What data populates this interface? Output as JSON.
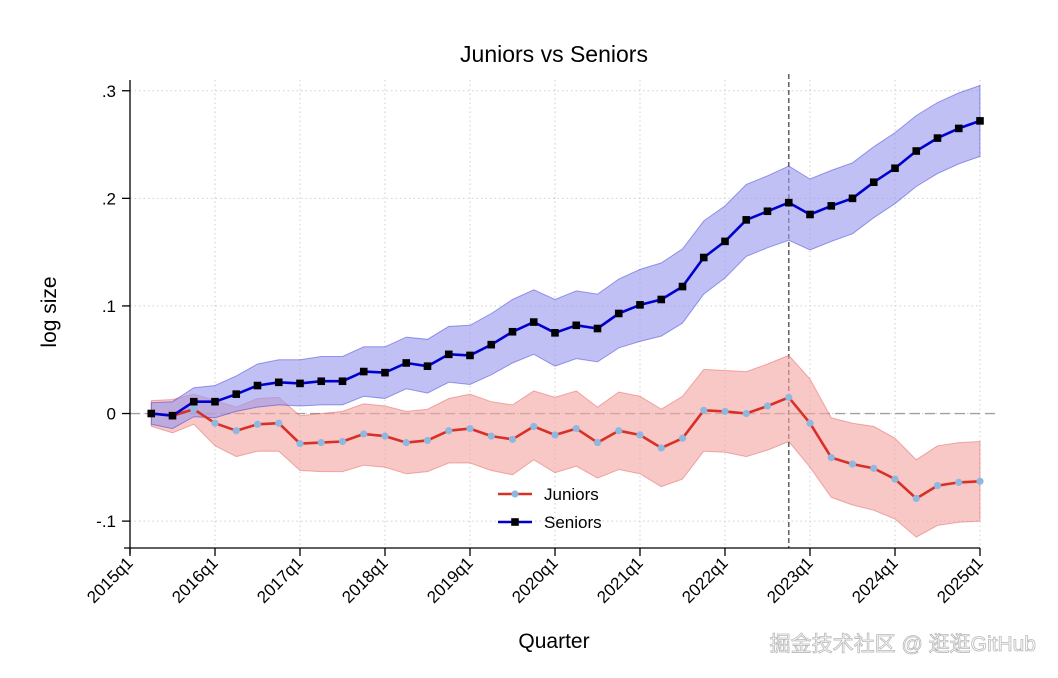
{
  "chart_data": {
    "type": "line",
    "title": "Juniors vs Seniors",
    "xlabel": "Quarter",
    "ylabel": "log size",
    "x_range": [
      "2015q1",
      "2025q1"
    ],
    "ylim": [
      -0.125,
      0.31
    ],
    "x_ticks": [
      "2015q1",
      "2016q1",
      "2017q1",
      "2018q1",
      "2019q1",
      "2020q1",
      "2021q1",
      "2022q1",
      "2023q1",
      "2024q1",
      "2025q1"
    ],
    "y_ticks": [
      {
        "value": 0.3,
        "label": ".3"
      },
      {
        "value": 0.2,
        "label": ".2"
      },
      {
        "value": 0.1,
        "label": ".1"
      },
      {
        "value": 0,
        "label": "0"
      },
      {
        "value": -0.1,
        "label": "-.1"
      }
    ],
    "grid": true,
    "reference_lines": [
      {
        "axis": "x",
        "value": "2022q4",
        "style": "dashed"
      },
      {
        "axis": "y",
        "value": 0,
        "style": "dashed"
      }
    ],
    "legend_position": "bottom-center",
    "x": [
      "2015q2",
      "2015q3",
      "2015q4",
      "2016q1",
      "2016q2",
      "2016q3",
      "2016q4",
      "2017q1",
      "2017q2",
      "2017q3",
      "2017q4",
      "2018q1",
      "2018q2",
      "2018q3",
      "2018q4",
      "2019q1",
      "2019q2",
      "2019q3",
      "2019q4",
      "2020q1",
      "2020q2",
      "2020q3",
      "2020q4",
      "2021q1",
      "2021q2",
      "2021q3",
      "2021q4",
      "2022q1",
      "2022q2",
      "2022q3",
      "2022q4",
      "2023q1",
      "2023q2",
      "2023q3",
      "2023q4",
      "2024q1",
      "2024q2",
      "2024q3",
      "2024q4",
      "2025q1"
    ],
    "series": [
      {
        "name": "Juniors",
        "color": "#d73027",
        "marker_color": "#8fb8e0",
        "band_color": "#f4a7a3",
        "marker": "circle",
        "values": [
          0.0,
          -0.002,
          0.004,
          -0.009,
          -0.016,
          -0.01,
          -0.009,
          -0.028,
          -0.027,
          -0.026,
          -0.019,
          -0.021,
          -0.027,
          -0.025,
          -0.016,
          -0.014,
          -0.021,
          -0.024,
          -0.012,
          -0.02,
          -0.014,
          -0.027,
          -0.016,
          -0.02,
          -0.032,
          -0.023,
          0.003,
          0.002,
          0.0,
          0.007,
          0.015,
          -0.009,
          -0.041,
          -0.047,
          -0.051,
          -0.061,
          -0.079,
          -0.067,
          -0.064,
          -0.063
        ],
        "ci_lower": [
          -0.012,
          -0.018,
          -0.01,
          -0.03,
          -0.04,
          -0.035,
          -0.035,
          -0.053,
          -0.054,
          -0.054,
          -0.048,
          -0.05,
          -0.056,
          -0.054,
          -0.046,
          -0.046,
          -0.053,
          -0.057,
          -0.043,
          -0.055,
          -0.049,
          -0.06,
          -0.052,
          -0.056,
          -0.068,
          -0.061,
          -0.035,
          -0.036,
          -0.04,
          -0.034,
          -0.026,
          -0.05,
          -0.078,
          -0.085,
          -0.09,
          -0.098,
          -0.115,
          -0.104,
          -0.101,
          -0.1
        ],
        "ci_upper": [
          0.012,
          0.013,
          0.018,
          0.012,
          0.006,
          0.014,
          0.015,
          -0.002,
          0.0,
          0.002,
          0.009,
          0.007,
          0.002,
          0.004,
          0.014,
          0.018,
          0.011,
          0.008,
          0.021,
          0.015,
          0.021,
          0.006,
          0.02,
          0.016,
          0.004,
          0.016,
          0.041,
          0.04,
          0.039,
          0.046,
          0.054,
          0.032,
          -0.004,
          -0.009,
          -0.012,
          -0.023,
          -0.043,
          -0.03,
          -0.027,
          -0.026
        ]
      },
      {
        "name": "Seniors",
        "color": "#0000cc",
        "marker_color": "#000000",
        "band_color": "#9999ee",
        "marker": "square",
        "values": [
          0.0,
          -0.002,
          0.011,
          0.011,
          0.018,
          0.026,
          0.029,
          0.028,
          0.03,
          0.03,
          0.039,
          0.038,
          0.047,
          0.044,
          0.055,
          0.054,
          0.064,
          0.076,
          0.085,
          0.075,
          0.082,
          0.079,
          0.093,
          0.101,
          0.106,
          0.118,
          0.145,
          0.16,
          0.18,
          0.188,
          0.196,
          0.185,
          0.193,
          0.2,
          0.215,
          0.228,
          0.244,
          0.256,
          0.265,
          0.272
        ],
        "ci_lower": [
          -0.01,
          -0.014,
          -0.003,
          -0.004,
          0.002,
          0.006,
          0.008,
          0.007,
          0.008,
          0.008,
          0.016,
          0.014,
          0.023,
          0.019,
          0.029,
          0.027,
          0.036,
          0.047,
          0.055,
          0.044,
          0.051,
          0.048,
          0.061,
          0.067,
          0.072,
          0.084,
          0.111,
          0.126,
          0.146,
          0.154,
          0.161,
          0.152,
          0.16,
          0.167,
          0.182,
          0.195,
          0.211,
          0.223,
          0.232,
          0.239
        ],
        "ci_upper": [
          0.01,
          0.011,
          0.024,
          0.026,
          0.035,
          0.046,
          0.05,
          0.05,
          0.053,
          0.053,
          0.062,
          0.062,
          0.071,
          0.069,
          0.081,
          0.082,
          0.093,
          0.106,
          0.115,
          0.106,
          0.114,
          0.111,
          0.125,
          0.134,
          0.14,
          0.153,
          0.179,
          0.193,
          0.213,
          0.221,
          0.23,
          0.218,
          0.226,
          0.233,
          0.248,
          0.261,
          0.277,
          0.289,
          0.298,
          0.305
        ]
      }
    ]
  },
  "watermark": "掘金技术社区 @ 逛逛GitHub"
}
